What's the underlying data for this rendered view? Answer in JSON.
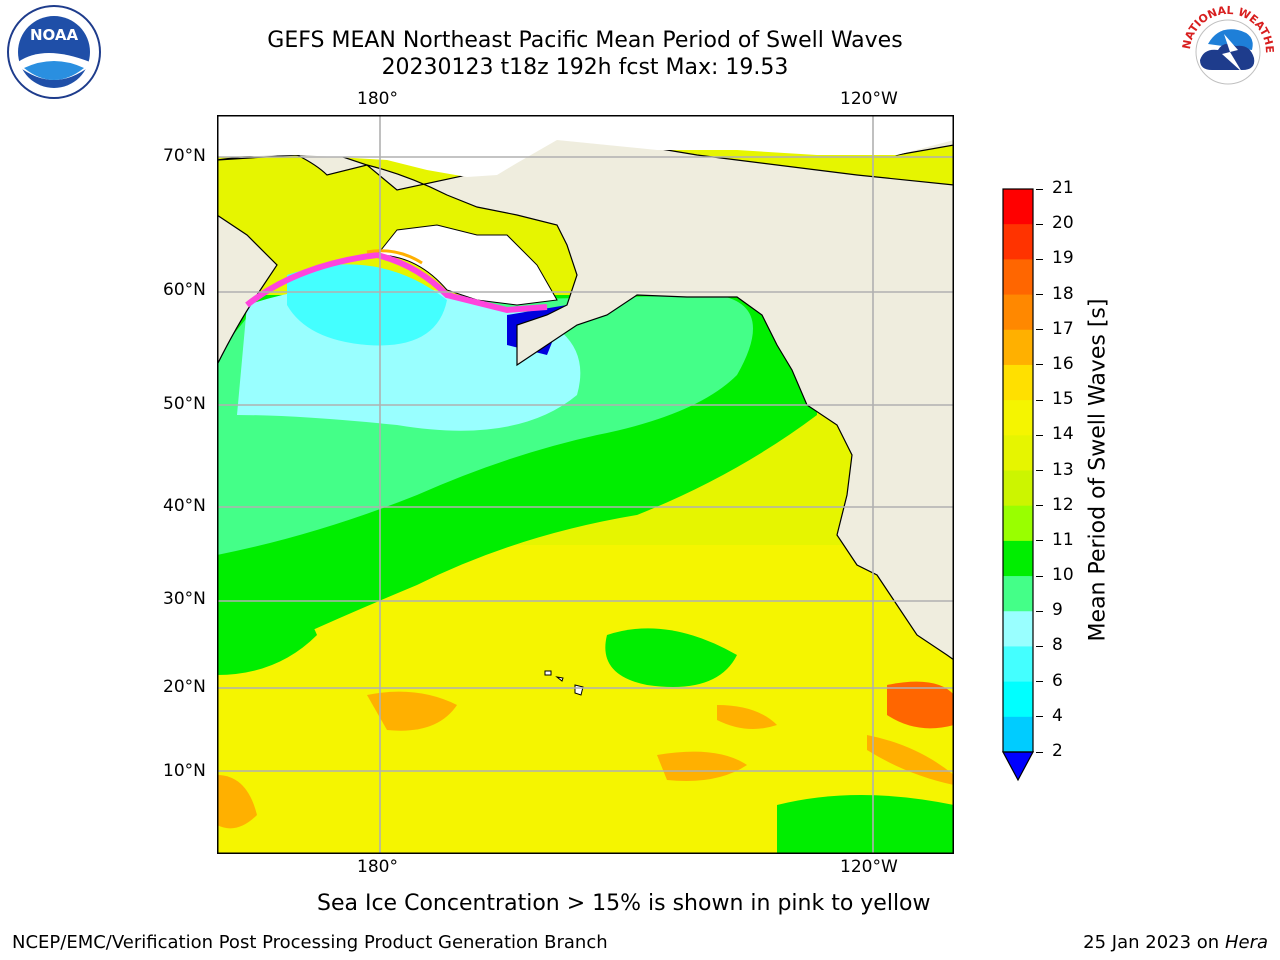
{
  "title": {
    "line1": "GEFS MEAN Northeast Pacific Mean Period of Swell Waves",
    "line2": "20230123 t18z 192h fcst   Max: 19.53"
  },
  "logos": {
    "noaa_text": "NOAA",
    "nws_text": "NATIONAL WEATHER SERVICE"
  },
  "map": {
    "lon_labels_top": [
      "180°",
      "120°W"
    ],
    "lon_labels_bottom": [
      "180°",
      "120°W"
    ],
    "lat_labels": [
      "70°N",
      "60°N",
      "50°N",
      "40°N",
      "30°N",
      "20°N",
      "10°N"
    ],
    "grid": true
  },
  "colorbar": {
    "label": "Mean Period of Swell Waves [s]",
    "ticks": [
      "21",
      "20",
      "19",
      "18",
      "17",
      "16",
      "15",
      "14",
      "13",
      "12",
      "11",
      "10",
      "9",
      "8",
      "6",
      "4",
      "2"
    ],
    "colors": [
      "#ff0000",
      "#ff3300",
      "#ff6600",
      "#ff8800",
      "#ffb000",
      "#ffe000",
      "#f5f500",
      "#e6f500",
      "#ccf500",
      "#99ff00",
      "#00ee00",
      "#44ff88",
      "#99ffff",
      "#44ffff",
      "#00ffff",
      "#00ccff",
      "#0077ff"
    ],
    "extend_color": "#0000ff"
  },
  "caption": "Sea Ice Concentration > 15% is shown in pink to yellow",
  "footer": {
    "left": "NCEP/EMC/Verification Post Processing Product Generation Branch",
    "right_date": "25 Jan 2023 on ",
    "right_machine": "Hera"
  },
  "colors": {
    "land": "#efedde",
    "ice_white": "#ffffff",
    "ice_pink": "#ff44dd",
    "gridline": "#b0b0b0"
  }
}
